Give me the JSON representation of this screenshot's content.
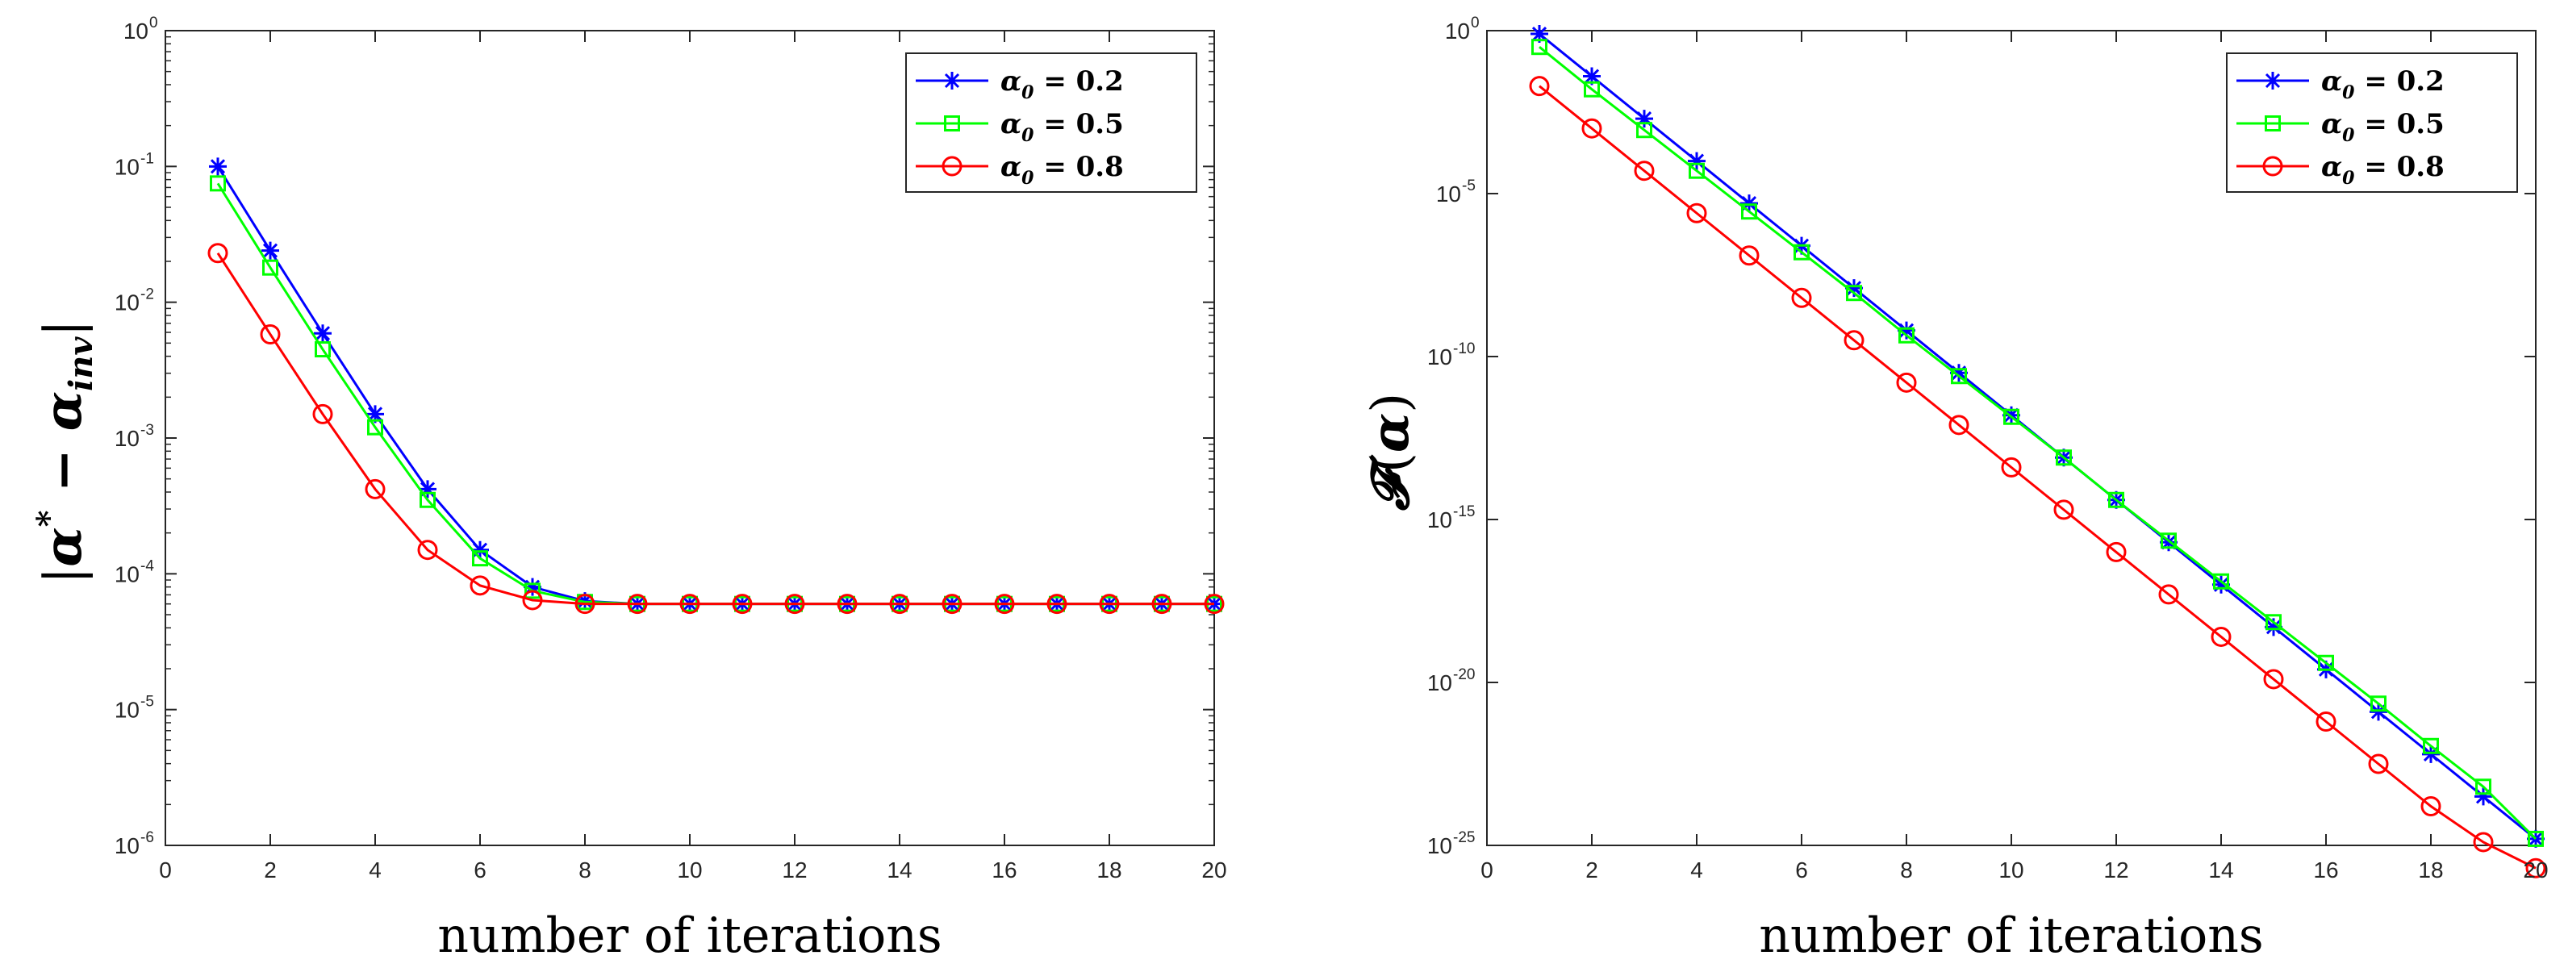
{
  "chart_data": [
    {
      "type": "line",
      "xlabel": "number of iterations",
      "ylabel": "|α* − α_inv|",
      "ylabel_parts": {
        "open": "|",
        "alpha": "α",
        "star": "*",
        "minus": " − ",
        "alpha2": "α",
        "sub": "inv",
        "close": "|"
      },
      "xlim": [
        0,
        20
      ],
      "ylim_log10": [
        -6,
        0
      ],
      "xticks": [
        "0",
        "2",
        "4",
        "6",
        "8",
        "10",
        "12",
        "14",
        "16",
        "18",
        "20"
      ],
      "yticks": [
        {
          "base": "10",
          "exp": "-6"
        },
        {
          "base": "10",
          "exp": "-5"
        },
        {
          "base": "10",
          "exp": "-4"
        },
        {
          "base": "10",
          "exp": "-3"
        },
        {
          "base": "10",
          "exp": "-2"
        },
        {
          "base": "10",
          "exp": "-1"
        },
        {
          "base": "10",
          "exp": "0"
        }
      ],
      "legend_position": "top-right",
      "x": [
        1,
        2,
        3,
        4,
        5,
        6,
        7,
        8,
        9,
        10,
        11,
        12,
        13,
        14,
        15,
        16,
        17,
        18,
        19,
        20
      ],
      "series": [
        {
          "name": "α0 = 0.2",
          "label_parts": {
            "alpha": "α",
            "sub": "0",
            "rest": " = 0.2"
          },
          "color": "#0000ff",
          "marker": "star",
          "values": [
            0.1,
            0.024,
            0.0059,
            0.0015,
            0.00042,
            0.00015,
            8e-05,
            6.3e-05,
            6e-05,
            6e-05,
            6e-05,
            6e-05,
            6e-05,
            6e-05,
            6e-05,
            6e-05,
            6e-05,
            6e-05,
            6e-05,
            6e-05
          ]
        },
        {
          "name": "α0 = 0.5",
          "label_parts": {
            "alpha": "α",
            "sub": "0",
            "rest": " = 0.5"
          },
          "color": "#00ff00",
          "marker": "square",
          "values": [
            0.075,
            0.018,
            0.0045,
            0.0012,
            0.00035,
            0.00013,
            7.5e-05,
            6.2e-05,
            6e-05,
            6e-05,
            6e-05,
            6e-05,
            6e-05,
            6e-05,
            6e-05,
            6e-05,
            6e-05,
            6e-05,
            6e-05,
            6e-05
          ]
        },
        {
          "name": "α0 = 0.8",
          "label_parts": {
            "alpha": "α",
            "sub": "0",
            "rest": " = 0.8"
          },
          "color": "#ff0000",
          "marker": "circle",
          "values": [
            0.023,
            0.0058,
            0.0015,
            0.00042,
            0.00015,
            8.2e-05,
            6.4e-05,
            6e-05,
            6e-05,
            6e-05,
            6e-05,
            6e-05,
            6e-05,
            6e-05,
            6e-05,
            6e-05,
            6e-05,
            6e-05,
            6e-05,
            6e-05
          ]
        }
      ]
    },
    {
      "type": "line",
      "xlabel": "number of iterations",
      "ylabel": "𝓕(α)",
      "ylabel_parts": {
        "F": "𝓕",
        "open": "(",
        "alpha": "α",
        "close": ")"
      },
      "xlim": [
        0,
        20
      ],
      "ylim_log10": [
        -25,
        0
      ],
      "xticks": [
        "0",
        "2",
        "4",
        "6",
        "8",
        "10",
        "12",
        "14",
        "16",
        "18",
        "20"
      ],
      "yticks": [
        {
          "base": "10",
          "exp": "-25"
        },
        {
          "base": "10",
          "exp": "-20"
        },
        {
          "base": "10",
          "exp": "-15"
        },
        {
          "base": "10",
          "exp": "-10"
        },
        {
          "base": "10",
          "exp": "-5"
        },
        {
          "base": "10",
          "exp": "0"
        }
      ],
      "legend_position": "top-right",
      "x": [
        1,
        2,
        3,
        4,
        5,
        6,
        7,
        8,
        9,
        10,
        11,
        12,
        13,
        14,
        15,
        16,
        17,
        18,
        19,
        20
      ],
      "series": [
        {
          "name": "α0 = 0.2",
          "label_parts": {
            "alpha": "α",
            "sub": "0",
            "rest": " = 0.2"
          },
          "color": "#0000ff",
          "marker": "star",
          "log10_values": [
            -0.1,
            -1.4,
            -2.7,
            -4.0,
            -5.3,
            -6.6,
            -7.9,
            -9.2,
            -10.5,
            -11.8,
            -13.1,
            -14.4,
            -15.7,
            -17.0,
            -18.3,
            -19.6,
            -20.9,
            -22.2,
            -23.5,
            -24.8
          ]
        },
        {
          "name": "α0 = 0.5",
          "label_parts": {
            "alpha": "α",
            "sub": "0",
            "rest": " = 0.5"
          },
          "color": "#00ff00",
          "marker": "square",
          "log10_values": [
            -0.5,
            -1.8,
            -3.05,
            -4.3,
            -5.55,
            -6.8,
            -8.05,
            -9.35,
            -10.6,
            -11.85,
            -13.1,
            -14.4,
            -15.65,
            -16.9,
            -18.15,
            -19.4,
            -20.65,
            -21.95,
            -23.2,
            -24.8
          ]
        },
        {
          "name": "α0 = 0.8",
          "label_parts": {
            "alpha": "α",
            "sub": "0",
            "rest": " = 0.8"
          },
          "color": "#ff0000",
          "marker": "circle",
          "log10_values": [
            -1.7,
            -3.0,
            -4.3,
            -5.6,
            -6.9,
            -8.2,
            -9.5,
            -10.8,
            -12.1,
            -13.4,
            -14.7,
            -16.0,
            -17.3,
            -18.6,
            -19.9,
            -21.2,
            -22.5,
            -23.8,
            -24.9,
            -25.7
          ]
        }
      ]
    }
  ]
}
